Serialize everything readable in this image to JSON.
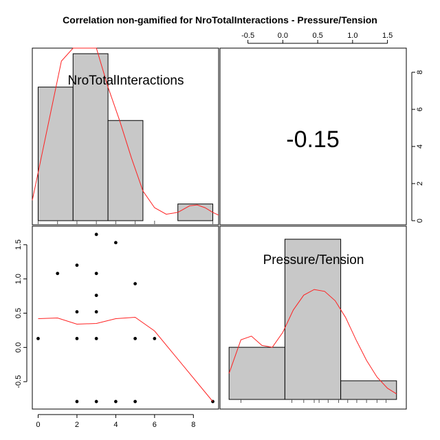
{
  "chart_data": {
    "type": "pairs",
    "title": "Correlation non-gamified for NroTotalInteractions - Pressure/Tension",
    "variables": [
      "NroTotalInteractions",
      "Pressure/Tension"
    ],
    "correlation": "-0.15",
    "axes": {
      "x_bottom_ticks": [
        "0",
        "2",
        "4",
        "6",
        "8"
      ],
      "x_top_ticks": [
        "-0.5",
        "0.0",
        "0.5",
        "1.0",
        "1.5"
      ],
      "y_left_ticks": [
        "-0.5",
        "0.0",
        "0.5",
        "1.0",
        "1.5"
      ],
      "y_right_ticks": [
        "0",
        "2",
        "4",
        "6",
        "8"
      ],
      "x_range": [
        -0.3,
        9.3
      ],
      "y_range": [
        -0.9,
        1.77
      ],
      "hist_count_range": [
        0,
        9.3
      ]
    },
    "histogram_1": {
      "variable": "NroTotalInteractions",
      "bins": [
        {
          "from": 0.0,
          "to": 1.8,
          "count": 7.2
        },
        {
          "from": 1.8,
          "to": 3.6,
          "count": 9.0
        },
        {
          "from": 3.6,
          "to": 5.4,
          "count": 5.4
        },
        {
          "from": 5.4,
          "to": 7.2,
          "count": 0
        },
        {
          "from": 7.2,
          "to": 9.0,
          "count": 0.9
        }
      ],
      "density": [
        [
          -0.3,
          1.1
        ],
        [
          0,
          2.6
        ],
        [
          0.6,
          5.6
        ],
        [
          1.2,
          8.6
        ],
        [
          1.8,
          10.4
        ],
        [
          2.4,
          10.6
        ],
        [
          3.0,
          9.4
        ],
        [
          3.6,
          7.2
        ],
        [
          4.2,
          5.4
        ],
        [
          4.8,
          3.4
        ],
        [
          5.4,
          1.6
        ],
        [
          6.0,
          0.7
        ],
        [
          6.6,
          0.35
        ],
        [
          7.2,
          0.45
        ],
        [
          7.8,
          0.8
        ],
        [
          8.2,
          0.85
        ],
        [
          8.6,
          0.7
        ],
        [
          9.0,
          0.45
        ],
        [
          9.3,
          0.3
        ]
      ],
      "rug": [
        0,
        1,
        2,
        3,
        4,
        5,
        6,
        9
      ]
    },
    "histogram_2": {
      "variable": "Pressure/Tension",
      "bins": [
        {
          "from": -0.77,
          "to": 0.03,
          "count": 2.8
        },
        {
          "from": 0.03,
          "to": 0.83,
          "count": 8.6
        },
        {
          "from": 0.83,
          "to": 1.63,
          "count": 1.0
        }
      ],
      "density": [
        [
          -0.77,
          1.4
        ],
        [
          -0.6,
          3.2
        ],
        [
          -0.45,
          3.4
        ],
        [
          -0.3,
          2.9
        ],
        [
          -0.15,
          2.8
        ],
        [
          0.0,
          3.6
        ],
        [
          0.15,
          4.8
        ],
        [
          0.3,
          5.6
        ],
        [
          0.45,
          5.9
        ],
        [
          0.6,
          5.8
        ],
        [
          0.75,
          5.3
        ],
        [
          0.9,
          4.4
        ],
        [
          1.05,
          3.2
        ],
        [
          1.2,
          2.1
        ],
        [
          1.35,
          1.2
        ],
        [
          1.5,
          0.6
        ],
        [
          1.63,
          0.3
        ]
      ],
      "rug": [
        -0.6,
        0.13,
        0.3,
        0.45,
        0.52,
        0.65,
        0.8,
        0.93,
        1.06,
        1.2,
        1.35,
        1.48
      ]
    },
    "scatter": {
      "x_variable": "NroTotalInteractions",
      "y_variable": "Pressure/Tension",
      "points": [
        [
          0,
          0.13
        ],
        [
          1,
          1.08
        ],
        [
          2,
          1.2
        ],
        [
          2,
          0.52
        ],
        [
          2,
          0.13
        ],
        [
          2,
          -0.79
        ],
        [
          3,
          1.65
        ],
        [
          3,
          1.08
        ],
        [
          3,
          0.76
        ],
        [
          3,
          0.52
        ],
        [
          3,
          0.13
        ],
        [
          3,
          -0.79
        ],
        [
          4,
          1.53
        ],
        [
          4,
          -0.79
        ],
        [
          5,
          0.93
        ],
        [
          5,
          0.13
        ],
        [
          5,
          -0.79
        ],
        [
          6,
          0.13
        ],
        [
          9,
          -0.79
        ]
      ],
      "smooth": [
        [
          0,
          0.42
        ],
        [
          1,
          0.43
        ],
        [
          2,
          0.34
        ],
        [
          3,
          0.35
        ],
        [
          4,
          0.42
        ],
        [
          5,
          0.44
        ],
        [
          6,
          0.24
        ],
        [
          9,
          -0.79
        ]
      ]
    },
    "colors": {
      "bar_fill": "#c8c8c8",
      "density_line": "#ff2020",
      "smooth_line": "#ff2020",
      "points": "#000000",
      "panel_border": "#000000"
    }
  }
}
